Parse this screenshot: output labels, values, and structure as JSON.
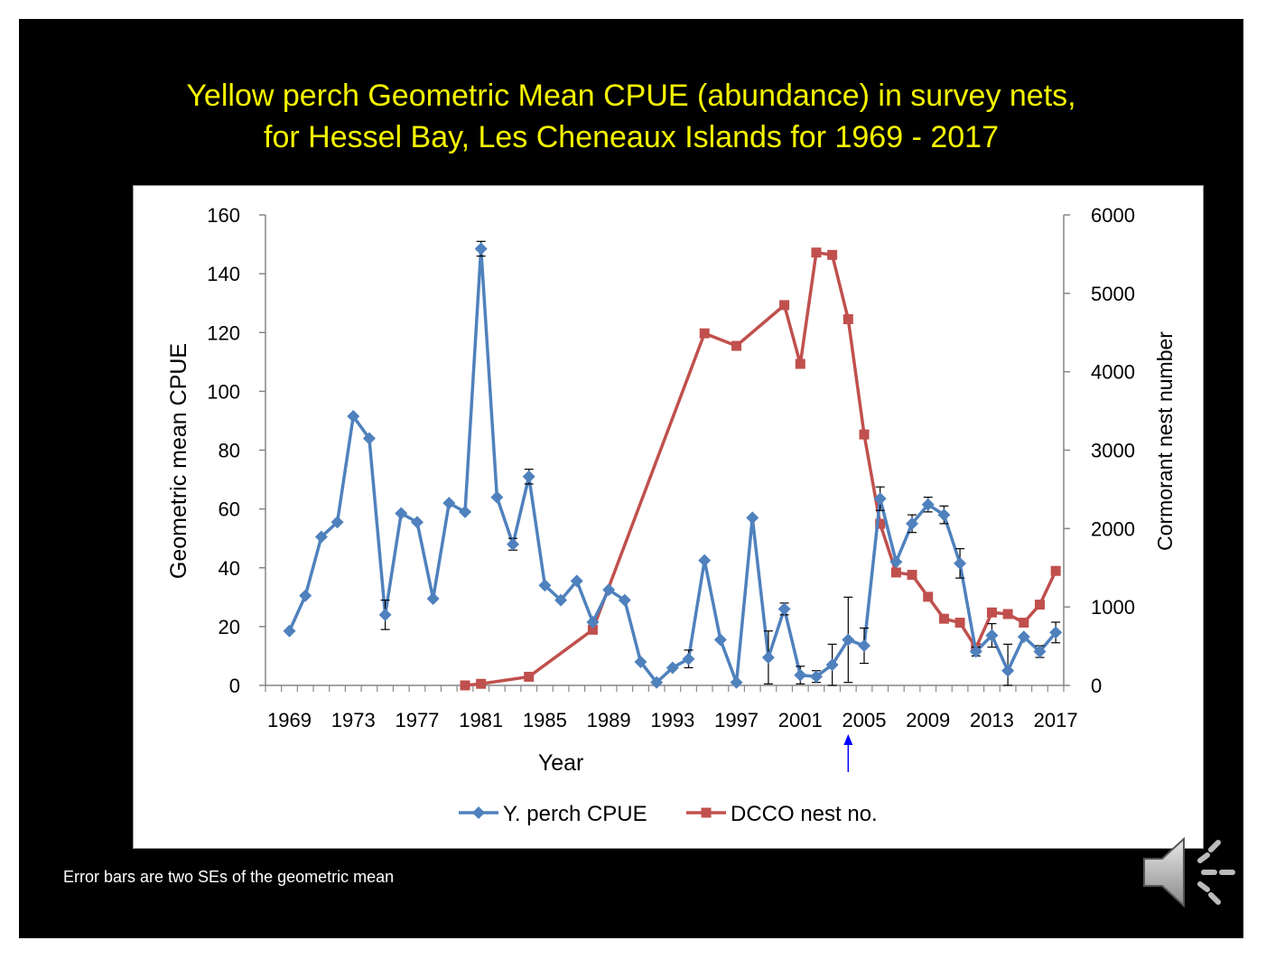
{
  "slide": {
    "title_line1": "Yellow perch Geometric Mean CPUE (abundance) in survey nets,",
    "title_line2": "for Hessel Bay, Les Cheneaux Islands for 1969 - 2017",
    "footnote": "Error bars are two SEs of the geometric mean",
    "colors": {
      "background": "#000000",
      "title": "#f5f500",
      "footnote": "#ffffff"
    },
    "audio_icon": "speaker-sound-icon"
  },
  "chart_data": {
    "type": "line",
    "xlabel": "Year",
    "ylabel": "Geometric mean CPUE",
    "y2label": "Cormorant nest number",
    "x_ticks": [
      1969,
      1973,
      1977,
      1981,
      1985,
      1989,
      1993,
      1997,
      2001,
      2005,
      2009,
      2013,
      2017
    ],
    "xlim": [
      1968,
      2018
    ],
    "ylim": [
      0,
      160
    ],
    "y_ticks": [
      0,
      20,
      40,
      60,
      80,
      100,
      120,
      140,
      160
    ],
    "y2lim": [
      0,
      6000
    ],
    "y2_ticks": [
      0,
      1000,
      2000,
      3000,
      4000,
      5000,
      6000
    ],
    "grid": false,
    "legend_position": "bottom",
    "annotation": {
      "year": 2004,
      "color": "#0000ff"
    },
    "series": [
      {
        "name": "Y. perch CPUE",
        "axis": "left",
        "color": "#4f81bd",
        "marker": "diamond",
        "x": [
          1969,
          1970,
          1971,
          1972,
          1973,
          1974,
          1975,
          1976,
          1977,
          1978,
          1979,
          1980,
          1981,
          1982,
          1983,
          1984,
          1985,
          1986,
          1987,
          1988,
          1989,
          1990,
          1991,
          1992,
          1993,
          1994,
          1995,
          1996,
          1997,
          1998,
          1999,
          2000,
          2001,
          2002,
          2003,
          2004,
          2005,
          2006,
          2007,
          2008,
          2009,
          2010,
          2011,
          2012,
          2013,
          2014,
          2015,
          2016,
          2017
        ],
        "values": [
          18.5,
          30.5,
          50.5,
          55.5,
          91.5,
          84,
          24,
          58.5,
          55.5,
          29.5,
          62,
          59,
          148.5,
          64,
          48,
          71,
          34,
          29,
          35.5,
          21.5,
          32.5,
          29,
          8,
          1,
          6,
          9,
          42.5,
          15.5,
          1,
          57,
          9.5,
          26,
          3.5,
          3,
          7,
          15.5,
          13.5,
          63.5,
          42,
          55,
          61.5,
          58,
          41.5,
          11.5,
          17,
          5,
          16.5,
          11.5,
          18
        ],
        "error": [
          0,
          0,
          0,
          0,
          0,
          0,
          5,
          0,
          0,
          0,
          0,
          0,
          2.5,
          0,
          2,
          2.5,
          0,
          0,
          0,
          0,
          0,
          0,
          0,
          0,
          0,
          3,
          0,
          0,
          0,
          0,
          9,
          2,
          3,
          2,
          7,
          14.5,
          6,
          4,
          0,
          3,
          2.5,
          3,
          5,
          1.5,
          4,
          9,
          0,
          2,
          3.5
        ]
      },
      {
        "name": "DCCO nest no.",
        "axis": "right",
        "color": "#c0504d",
        "marker": "square",
        "x": [
          1980,
          1981,
          1984,
          1988,
          1995,
          1997,
          2000,
          2001,
          2002,
          2003,
          2004,
          2005,
          2006,
          2007,
          2008,
          2009,
          2010,
          2011,
          2012,
          2013,
          2014,
          2015,
          2016,
          2017
        ],
        "values": [
          0,
          20,
          110,
          710,
          4490,
          4330,
          4850,
          4100,
          5520,
          5490,
          4670,
          3200,
          2060,
          1440,
          1410,
          1130,
          850,
          800,
          480,
          930,
          910,
          800,
          1030,
          1460
        ]
      }
    ]
  }
}
